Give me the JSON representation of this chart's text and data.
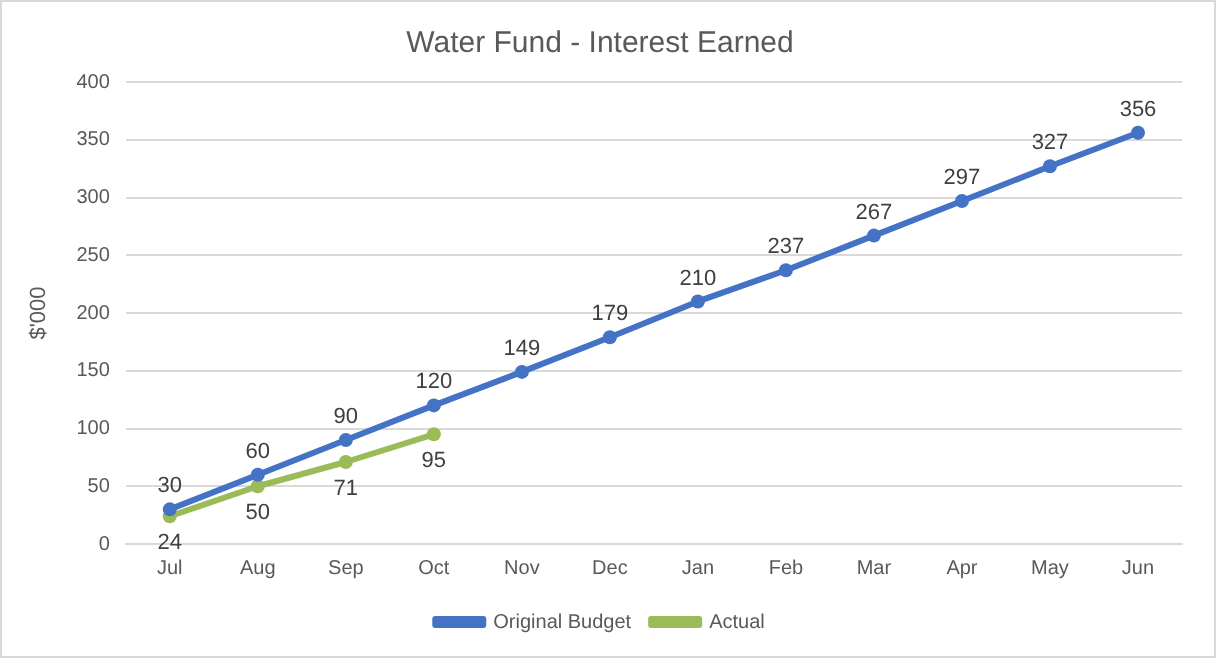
{
  "chart_data": {
    "type": "line",
    "title": "Water Fund - Interest Earned",
    "ylabel": "$'000",
    "categories": [
      "Jul",
      "Aug",
      "Sep",
      "Oct",
      "Nov",
      "Dec",
      "Jan",
      "Feb",
      "Mar",
      "Apr",
      "May",
      "Jun"
    ],
    "series": [
      {
        "name": "Original Budget",
        "color": "#4472c4",
        "values": [
          30,
          60,
          90,
          120,
          149,
          179,
          210,
          237,
          267,
          297,
          327,
          356
        ]
      },
      {
        "name": "Actual",
        "color": "#9bbb59",
        "values": [
          24,
          50,
          71,
          95,
          null,
          null,
          null,
          null,
          null,
          null,
          null,
          null
        ]
      }
    ],
    "ylim": [
      0,
      400
    ],
    "yticks": [
      0,
      50,
      100,
      150,
      200,
      250,
      300,
      350,
      400
    ],
    "grid": "y",
    "legend": "bottom",
    "marker": "circle",
    "line_style": "solid",
    "data_labels": true
  }
}
